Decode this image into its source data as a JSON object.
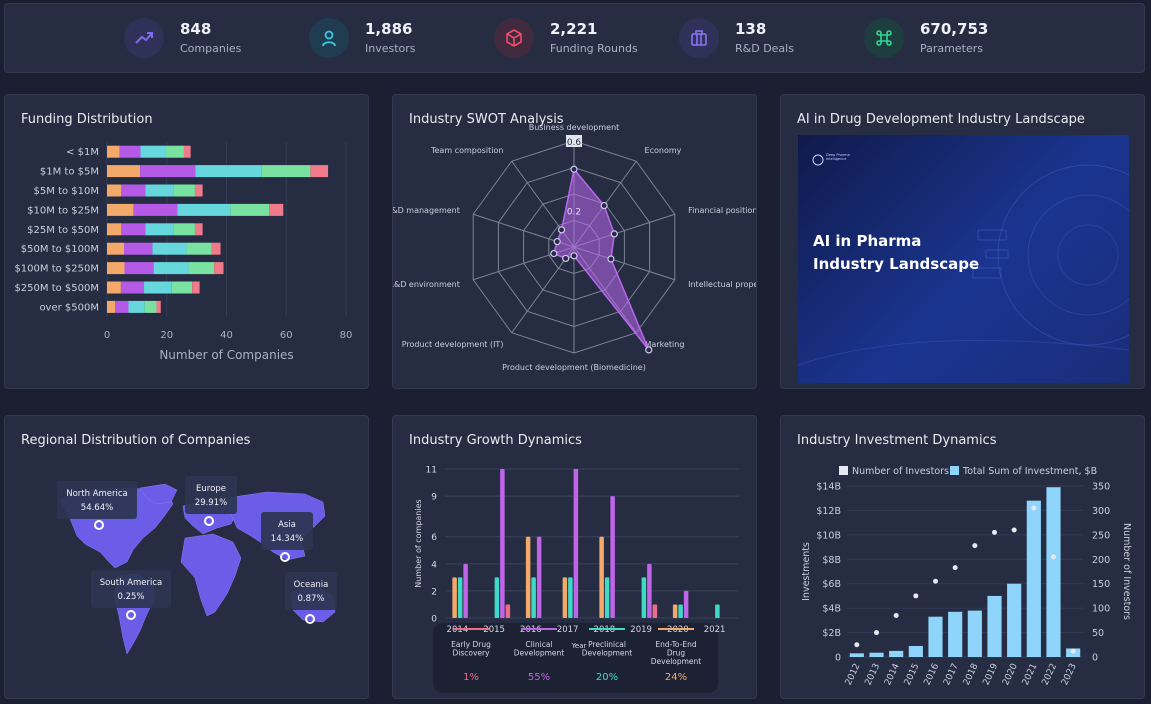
{
  "stats": [
    {
      "value": "848",
      "label": "Companies",
      "icon": "trend-chart-icon",
      "color": "#7d6cf2",
      "bg": "#2f3258"
    },
    {
      "value": "1,886",
      "label": "Investors",
      "icon": "user-icon",
      "color": "#3cc6e6",
      "bg": "#1f3c50"
    },
    {
      "value": "2,221",
      "label": "Funding Rounds",
      "icon": "cube-icon",
      "color": "#ef4e6b",
      "bg": "#412a3e"
    },
    {
      "value": "138",
      "label": "R&D Deals",
      "icon": "briefcase-icon",
      "color": "#8a74f5",
      "bg": "#2f3258"
    },
    {
      "value": "670,753",
      "label": "Parameters",
      "icon": "command-icon",
      "color": "#2fd891",
      "bg": "#1e3d3e"
    }
  ],
  "panels": {
    "funding": "Funding Distribution",
    "swot": "Industry SWOT Analysis",
    "landscape": "AI in Drug Development Industry Landscape",
    "regional": "Regional Distribution of Companies",
    "growth": "Industry Growth Dynamics",
    "investment": "Industry Investment Dynamics"
  },
  "landscape_card": {
    "heading_line1": "AI in Pharma",
    "heading_line2": "Industry Landscape",
    "logo_text": "Deep Pharma Intelligence"
  },
  "chart_data": [
    {
      "type": "bar",
      "orientation": "horizontal",
      "stacked": true,
      "categories": [
        "< $1M",
        "$1M to $5M",
        "$5M to $10M",
        "$10M to $25M",
        "$25M to $50M",
        "$50M to $100M",
        "$100M to $250M",
        "$250M to $500M",
        "over $500M"
      ],
      "values": [
        28,
        74,
        32,
        59,
        32,
        38,
        39,
        31,
        18
      ],
      "xlabel": "Number of Companies",
      "xlim": [
        0,
        80
      ],
      "xticks": [
        "0",
        "20",
        "40",
        "60",
        "80"
      ],
      "segment_colors": [
        "#f3a96a",
        "#b55ae6",
        "#67d7de",
        "#79e2a0",
        "#f07a8a"
      ]
    },
    {
      "type": "radar",
      "axes": [
        "Business development",
        "Economy",
        "Financial position",
        "Intellectual property",
        "Marketing",
        "Product development (Biomedicine)",
        "Product development (IT)",
        "R&D environment",
        "R&D management",
        "Team composition"
      ],
      "values": [
        0.44,
        0.29,
        0.24,
        0.22,
        0.72,
        0.05,
        0.08,
        0.12,
        0.1,
        0.12
      ],
      "rmax": 0.6,
      "ring_labels": [
        "0.6",
        "0.2"
      ],
      "color": "#b967f0"
    },
    {
      "type": "map",
      "regions": [
        {
          "name": "North America",
          "value": "54.64%"
        },
        {
          "name": "Europe",
          "value": "29.91%"
        },
        {
          "name": "Asia",
          "value": "14.34%"
        },
        {
          "name": "South America",
          "value": "0.25%"
        },
        {
          "name": "Oceania",
          "value": "0.87%"
        }
      ]
    },
    {
      "type": "bar",
      "ylabel": "Number of companies",
      "xlabel": "Year",
      "ylim": [
        0,
        11
      ],
      "yticks": [
        "0",
        "2",
        "4",
        "6",
        "9",
        "11"
      ],
      "x": [
        "2014",
        "2015",
        "2016",
        "2017",
        "2018",
        "2019",
        "2020",
        "2021"
      ],
      "series": [
        {
          "name": "Early Drug Discovery",
          "share": "1%",
          "color": "#ef6b8a",
          "values": [
            null,
            1,
            null,
            null,
            null,
            1,
            null,
            null
          ]
        },
        {
          "name": "Clinical Development",
          "share": "55%",
          "color": "#c064e8",
          "values": [
            4,
            11,
            6,
            11,
            9,
            4,
            2,
            null
          ]
        },
        {
          "name": "Preclinical Development",
          "share": "20%",
          "color": "#3fd9c8",
          "values": [
            3,
            3,
            3,
            3,
            3,
            3,
            1,
            1
          ]
        },
        {
          "name": "End-To-End Drug Development",
          "share": "24%",
          "color": "#f3a96a",
          "values": [
            3,
            null,
            6,
            3,
            6,
            null,
            1,
            null
          ]
        }
      ]
    },
    {
      "type": "bar+scatter",
      "x": [
        "2012",
        "2013",
        "2014",
        "2015",
        "2016",
        "2017",
        "2018",
        "2019",
        "2020",
        "2021",
        "2022",
        "2023"
      ],
      "series": [
        {
          "name": "Total Sum of Investment, $B",
          "type": "bar",
          "axis": "left",
          "values": [
            0.3,
            0.35,
            0.5,
            0.9,
            3.3,
            3.7,
            3.8,
            5.0,
            6.0,
            12.8,
            13.9,
            0.7
          ]
        },
        {
          "name": "Number of Investors",
          "type": "scatter",
          "axis": "right",
          "values": [
            25,
            50,
            85,
            125,
            155,
            183,
            228,
            255,
            260,
            305,
            205,
            12
          ]
        }
      ],
      "ylabel_left": "Investments",
      "ylabel_right": "Number of Investors",
      "ylim_left": [
        0,
        14
      ],
      "ylim_right": [
        0,
        350
      ],
      "yticks_left": [
        "0",
        "$2B",
        "$4B",
        "$6B",
        "$8B",
        "$10B",
        "$12B",
        "$14B"
      ],
      "yticks_right": [
        "0",
        "50",
        "100",
        "150",
        "200",
        "250",
        "300",
        "350"
      ],
      "legend": "top"
    }
  ]
}
